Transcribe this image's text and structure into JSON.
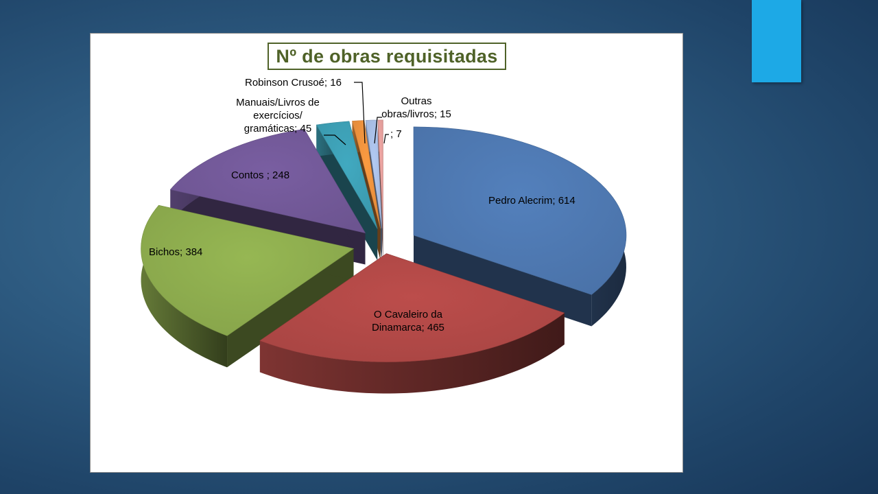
{
  "slide": {
    "accent_color": "#1da9e6"
  },
  "chart_data": {
    "type": "pie",
    "title": "Nº de obras requisitadas",
    "three_d": true,
    "exploded": true,
    "legend": "none",
    "slices": [
      {
        "label": "Pedro Alecrim",
        "value": 614,
        "display": "Pedro Alecrim; 614",
        "color": "#4a72a8"
      },
      {
        "label": "O Cavaleiro da Dinamarca",
        "value": 465,
        "display_lines": [
          "O Cavaleiro da",
          "Dinamarca; 465"
        ],
        "color": "#a84543"
      },
      {
        "label": "Bichos",
        "value": 384,
        "display": "Bichos; 384",
        "color": "#86a34a"
      },
      {
        "label": "Contos",
        "value": 248,
        "display": "Contos ; 248",
        "color": "#6c5490"
      },
      {
        "label": "Manuais/Livros de exercícios/ gramáticas",
        "value": 45,
        "display_lines": [
          "Manuais/Livros de",
          "exercícios/",
          "gramáticas; 45"
        ],
        "color": "#3a97ab"
      },
      {
        "label": "Robinson Crusoé",
        "value": 16,
        "display": "Robinson Crusoé; 16",
        "color": "#e08a3a"
      },
      {
        "label": "Outras obras/livros",
        "value": 15,
        "display_lines": [
          "Outras",
          "obras/livros; 15"
        ],
        "color": "#9fb4d9"
      },
      {
        "label": "",
        "value": 7,
        "display": "; 7",
        "color": "#d99794"
      }
    ]
  }
}
